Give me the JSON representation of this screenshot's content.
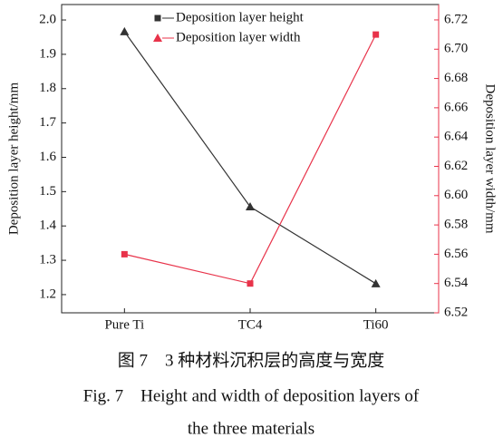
{
  "chart_data": {
    "type": "line",
    "categories": [
      "Pure Ti",
      "TC4",
      "Ti60"
    ],
    "ylabel": "Deposition layer height/mm",
    "y2label": "Deposition layer width/mm",
    "ylim": [
      1.147,
      2.045
    ],
    "yticks": [
      1.2,
      1.3,
      1.4,
      1.5,
      1.6,
      1.7,
      1.8,
      1.9,
      {
        "value": 2,
        "label": "2.0"
      }
    ],
    "y2lim": [
      6.52,
      6.7305
    ],
    "y2ticks": [
      6.52,
      6.54,
      6.56,
      6.58,
      {
        "value": 6.6,
        "label": "6.60"
      },
      6.62,
      6.64,
      6.66,
      6.68,
      {
        "value": 6.7,
        "label": "6.70"
      },
      6.72
    ],
    "y2color": "#e8334a",
    "legend": "top",
    "series": [
      {
        "name": "Deposition layer height",
        "color": "#333333",
        "marker": "triangle",
        "legend_marker": "square",
        "values": [
          1.966,
          1.456,
          1.232
        ]
      },
      {
        "name": "Deposition layer width",
        "color": "#e8334a",
        "marker": "square",
        "legend_marker": "triangle",
        "axis": "y2",
        "values": [
          6.56,
          6.54,
          6.71
        ]
      }
    ]
  },
  "caption": {
    "cn": "图 7　3 种材料沉积层的高度与宽度",
    "en": [
      "Fig. 7　Height and width of deposition layers of",
      "the three materials"
    ]
  }
}
